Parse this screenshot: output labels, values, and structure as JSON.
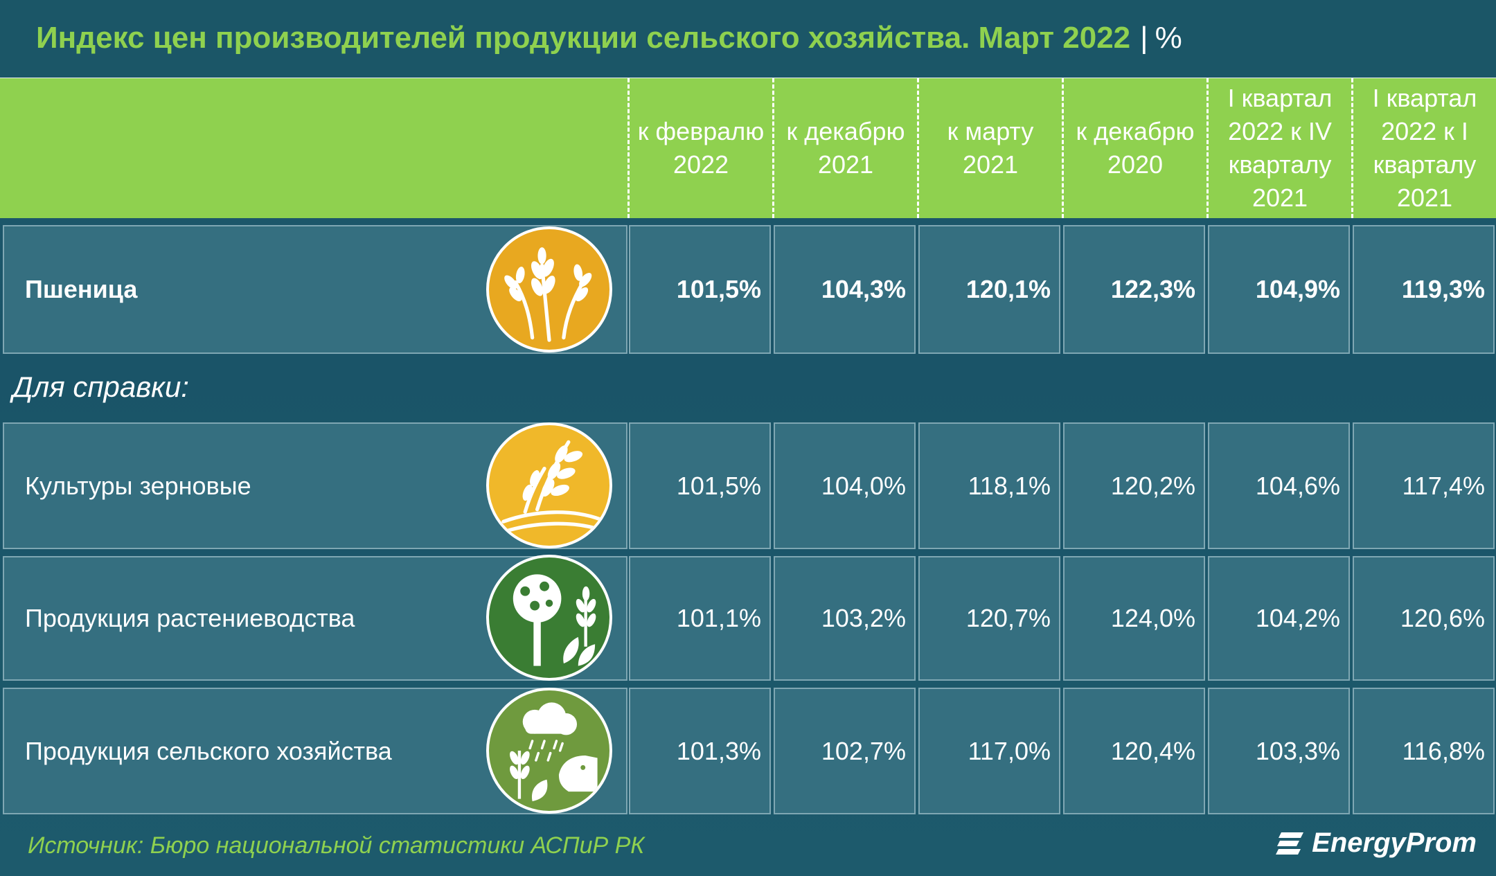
{
  "title": "Индекс цен производителей продукции сельского хозяйства. Март 2022",
  "unit": "%",
  "unit_sep": "|",
  "columns": [
    "к февралю\n2022",
    "к декабрю\n2021",
    "к марту\n2021",
    "к декабрю\n2020",
    "I квартал\n2022 к IV\nкварталу\n2021",
    "I квартал\n2022 к I\nкварталу\n2021"
  ],
  "note": "Для справки:",
  "source": "Источник: Бюро национальной статистики АСПиР РК",
  "brand": "EnergyProm",
  "colors": {
    "accent_green": "#8fd14f",
    "background": "#1b5667",
    "cell": "#356f80",
    "wheat_icon": "#e8a820",
    "grain_icon": "#f0b82a",
    "plant_icon": "#3a7d33",
    "agri_icon": "#6f9a3e"
  },
  "chart_data": {
    "type": "table",
    "title": "Индекс цен производителей продукции сельского хозяйства. Март 2022",
    "unit": "%",
    "columns": [
      "к февралю 2022",
      "к декабрю 2021",
      "к марту 2021",
      "к декабрю 2020",
      "I квартал 2022 к IV кварталу 2021",
      "I квартал 2022 к I кварталу 2021"
    ],
    "rows": [
      {
        "name": "Пшеница",
        "icon": "wheat-icon",
        "bold": true,
        "values": [
          "101,5%",
          "104,3%",
          "120,1%",
          "122,3%",
          "104,9%",
          "119,3%"
        ]
      },
      {
        "name": "Культуры зерновые",
        "icon": "grain-icon",
        "bold": false,
        "values": [
          "101,5%",
          "104,0%",
          "118,1%",
          "120,2%",
          "104,6%",
          "117,4%"
        ]
      },
      {
        "name": "Продукция растениеводства",
        "icon": "tree-icon",
        "bold": false,
        "values": [
          "101,1%",
          "103,2%",
          "120,7%",
          "124,0%",
          "104,2%",
          "120,6%"
        ]
      },
      {
        "name": "Продукция сельского хозяйства",
        "icon": "farm-icon",
        "bold": false,
        "values": [
          "101,3%",
          "102,7%",
          "117,0%",
          "120,4%",
          "103,3%",
          "116,8%"
        ]
      }
    ]
  }
}
